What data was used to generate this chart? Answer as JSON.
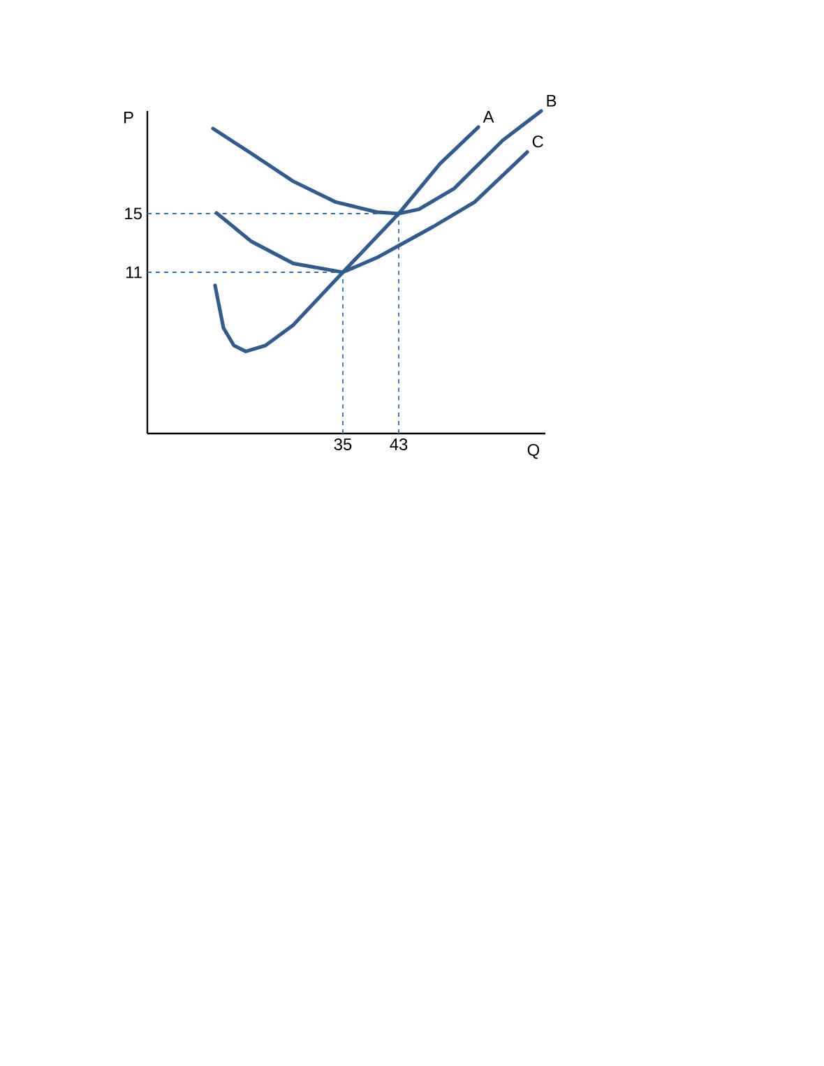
{
  "chart_data": {
    "type": "line",
    "xlabel": "Q",
    "ylabel": "P",
    "xlim": [
      7,
      64
    ],
    "ylim": [
      0,
      22
    ],
    "xticks": [
      35,
      43
    ],
    "yticks": [
      11,
      15
    ],
    "line_style": "solid",
    "series": [
      {
        "name": "A",
        "color": "#2f5b8f",
        "x": [
          16.7,
          17.9,
          19.4,
          21.1,
          23.9,
          27.9,
          35,
          43,
          48.9,
          54.4
        ],
        "values": [
          10.1,
          7.2,
          6.0,
          5.6,
          6.0,
          7.4,
          11,
          15,
          18.4,
          20.9
        ]
      },
      {
        "name": "B",
        "color": "#2f5b8f",
        "x": [
          16.4,
          21.9,
          27.9,
          33.9,
          39.9,
          43,
          45.9,
          50.9,
          57.9,
          63.4
        ],
        "values": [
          20.8,
          19.1,
          17.2,
          15.8,
          15.1,
          15,
          15.3,
          16.7,
          20.0,
          22.0
        ]
      },
      {
        "name": "C",
        "color": "#2f5b8f",
        "x": [
          16.9,
          21.9,
          27.9,
          35,
          39.9,
          47.9,
          53.9,
          61.4
        ],
        "values": [
          15.05,
          13.1,
          11.6,
          11,
          12.0,
          14.1,
          15.8,
          19.2
        ]
      }
    ],
    "ref_lines": [
      {
        "axis": "y",
        "value": 15,
        "color": "#2f6fb5",
        "line_style": "dashed"
      },
      {
        "axis": "x",
        "value": 43,
        "color": "#2f6fb5",
        "line_style": "dashed"
      },
      {
        "axis": "y",
        "value": 11,
        "color": "#2f6fb5",
        "line_style": "dashed"
      },
      {
        "axis": "x",
        "value": 35,
        "color": "#2f6fb5",
        "line_style": "dashed"
      }
    ]
  }
}
